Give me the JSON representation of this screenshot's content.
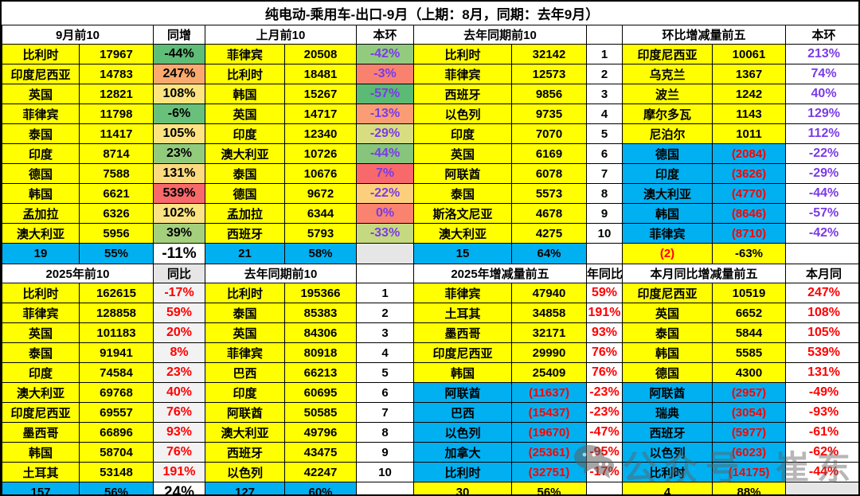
{
  "title": "纯电动-乘用车-出口-9月（上期：8月，同期：去年9月）",
  "watermark": {
    "icon": "wechat-icon",
    "label": "公众号",
    "name": "崔东树"
  },
  "colors": {
    "cell_yellow": "#FFFF00",
    "cell_blue": "#00B0F0",
    "text_red": "#FF0000",
    "text_purple": "#7A3BE8",
    "cell_gray": "#E7E6E6",
    "cell_light": "#F2F2F2",
    "border": "#000000"
  },
  "chart_data": [
    {
      "type": "table",
      "section": "monthly",
      "header": [
        "9月前10",
        "同增",
        "上月前10",
        "本环",
        "去年同期前10",
        "",
        "环比增减量前五",
        "本环"
      ],
      "rows": [
        [
          "比利时",
          "17967",
          "-44%",
          "菲律宾",
          "20508",
          "-42%",
          "比利时",
          "32142",
          "1",
          "印度尼西亚",
          "10061",
          "213%"
        ],
        [
          "印度尼西亚",
          "14783",
          "247%",
          "比利时",
          "18481",
          "-3%",
          "菲律宾",
          "12573",
          "2",
          "乌克兰",
          "1367",
          "74%"
        ],
        [
          "英国",
          "12821",
          "108%",
          "韩国",
          "15267",
          "-57%",
          "西班牙",
          "9856",
          "3",
          "波兰",
          "1242",
          "40%"
        ],
        [
          "菲律宾",
          "11798",
          "-6%",
          "英国",
          "14717",
          "-13%",
          "以色列",
          "9735",
          "4",
          "摩尔多瓦",
          "1143",
          "129%"
        ],
        [
          "泰国",
          "11417",
          "105%",
          "印度",
          "12340",
          "-29%",
          "印度",
          "7070",
          "5",
          "尼泊尔",
          "1011",
          "112%"
        ],
        [
          "印度",
          "8714",
          "23%",
          "澳大利亚",
          "10726",
          "-44%",
          "英国",
          "6169",
          "6",
          "德国",
          "(2084)",
          "-22%"
        ],
        [
          "德国",
          "7588",
          "131%",
          "泰国",
          "10676",
          "7%",
          "阿联酋",
          "6078",
          "7",
          "印度",
          "(3626)",
          "-29%"
        ],
        [
          "韩国",
          "6621",
          "539%",
          "德国",
          "9672",
          "-22%",
          "泰国",
          "5573",
          "8",
          "澳大利亚",
          "(4770)",
          "-44%"
        ],
        [
          "孟加拉",
          "6326",
          "102%",
          "孟加拉",
          "6344",
          "0%",
          "斯洛文尼亚",
          "4678",
          "9",
          "韩国",
          "(8646)",
          "-57%"
        ],
        [
          "澳大利亚",
          "5956",
          "39%",
          "西班牙",
          "5793",
          "-33%",
          "澳大利亚",
          "4275",
          "10",
          "菲律宾",
          "(8710)",
          "-42%"
        ]
      ],
      "summary": [
        "19",
        "55%",
        "-11%",
        "21",
        "58%",
        "",
        "15",
        "64%",
        "",
        "(2)",
        "-63%",
        ""
      ],
      "cond_bg_tongzeng": [
        "#5EBD77",
        "#FBAA6F",
        "#FDE47F",
        "#68C07A",
        "#FDE481",
        "#93CB7D",
        "#FCDA7E",
        "#F8696B",
        "#FBE383",
        "#A4D07E"
      ],
      "cond_bg_benhuan": [
        "#93CB7E",
        "#F9826F",
        "#5BBA73",
        "#FA9D74",
        "#D9DD82",
        "#86C57B",
        "#F8696B",
        "#FCCF7D",
        "#F9836F",
        "#C5D980"
      ]
    },
    {
      "type": "table",
      "section": "ytd",
      "header": [
        "2025年前10",
        "同比",
        "去年同期前10",
        "",
        "2025年增减量前五",
        "年同比",
        "本月同比增减量前五",
        "本月同"
      ],
      "rows": [
        [
          "比利时",
          "162615",
          "-17%",
          "比利时",
          "195366",
          "1",
          "菲律宾",
          "47940",
          "59%",
          "印度尼西亚",
          "10519",
          "247%"
        ],
        [
          "菲律宾",
          "128858",
          "59%",
          "泰国",
          "85383",
          "2",
          "土耳其",
          "34858",
          "191%",
          "英国",
          "6652",
          "108%"
        ],
        [
          "英国",
          "101183",
          "20%",
          "英国",
          "84306",
          "3",
          "墨西哥",
          "32171",
          "93%",
          "泰国",
          "5844",
          "105%"
        ],
        [
          "泰国",
          "91941",
          "8%",
          "菲律宾",
          "80918",
          "4",
          "印度尼西亚",
          "29990",
          "76%",
          "韩国",
          "5585",
          "539%"
        ],
        [
          "印度",
          "74584",
          "23%",
          "巴西",
          "66213",
          "5",
          "韩国",
          "25409",
          "76%",
          "德国",
          "4300",
          "131%"
        ],
        [
          "澳大利亚",
          "69768",
          "40%",
          "印度",
          "60695",
          "6",
          "阿联酋",
          "(11637)",
          "-23%",
          "阿联酋",
          "(2957)",
          "-49%"
        ],
        [
          "印度尼西亚",
          "69557",
          "76%",
          "阿联酋",
          "50585",
          "7",
          "巴西",
          "(15437)",
          "-23%",
          "瑞典",
          "(3054)",
          "-93%"
        ],
        [
          "墨西哥",
          "66896",
          "93%",
          "澳大利亚",
          "49796",
          "8",
          "以色列",
          "(19670)",
          "-47%",
          "西班牙",
          "(5977)",
          "-61%"
        ],
        [
          "韩国",
          "58704",
          "76%",
          "西班牙",
          "43475",
          "9",
          "加拿大",
          "(25361)",
          "-95%",
          "以色列",
          "(6023)",
          "-62%"
        ],
        [
          "土耳其",
          "53148",
          "191%",
          "以色列",
          "42247",
          "10",
          "比利时",
          "(32751)",
          "-17%",
          "比利时",
          "(14175)",
          "-44%"
        ]
      ],
      "summary": [
        "157",
        "56%",
        "24%",
        "127",
        "60%",
        "",
        "30",
        "56%",
        "",
        "4",
        "88%",
        ""
      ]
    }
  ]
}
